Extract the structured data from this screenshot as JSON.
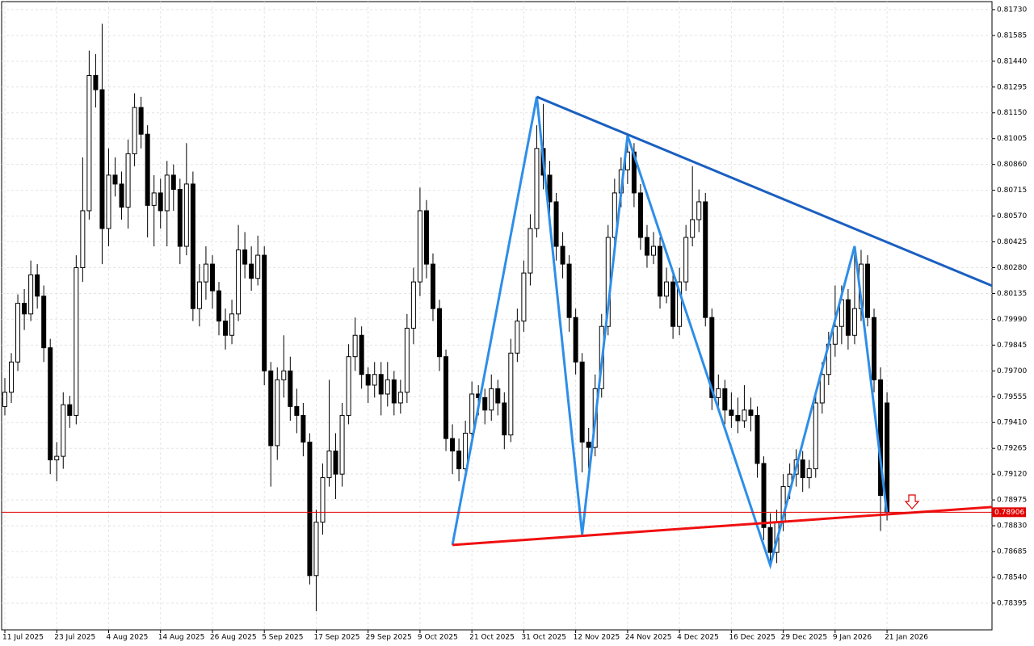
{
  "chart_data": {
    "type": "candlestick",
    "ylim": [
      0.78245,
      0.81775
    ],
    "yticks": [
      {
        "value": 0.8173,
        "label": "0.81730"
      },
      {
        "value": 0.81585,
        "label": "0.81585"
      },
      {
        "value": 0.8144,
        "label": "0.81440"
      },
      {
        "value": 0.81295,
        "label": "0.81295"
      },
      {
        "value": 0.8115,
        "label": "0.81150"
      },
      {
        "value": 0.81005,
        "label": "0.81005"
      },
      {
        "value": 0.8086,
        "label": "0.80860"
      },
      {
        "value": 0.80715,
        "label": "0.80715"
      },
      {
        "value": 0.8057,
        "label": "0.80570"
      },
      {
        "value": 0.80425,
        "label": "0.80425"
      },
      {
        "value": 0.8028,
        "label": "0.80280"
      },
      {
        "value": 0.80135,
        "label": "0.80135"
      },
      {
        "value": 0.7999,
        "label": "0.79990"
      },
      {
        "value": 0.79845,
        "label": "0.79845"
      },
      {
        "value": 0.797,
        "label": "0.79700"
      },
      {
        "value": 0.79555,
        "label": "0.79555"
      },
      {
        "value": 0.7941,
        "label": "0.79410"
      },
      {
        "value": 0.79265,
        "label": "0.79265"
      },
      {
        "value": 0.7912,
        "label": "0.79120"
      },
      {
        "value": 0.78975,
        "label": "0.78975"
      },
      {
        "value": 0.7883,
        "label": "0.78830"
      },
      {
        "value": 0.78685,
        "label": "0.78685"
      },
      {
        "value": 0.7854,
        "label": "0.78540"
      },
      {
        "value": 0.78395,
        "label": "0.78395"
      }
    ],
    "grid": true,
    "categories": [
      "11 Jul 2025",
      null,
      null,
      null,
      null,
      null,
      null,
      null,
      "23 Jul 2025",
      null,
      null,
      null,
      null,
      null,
      null,
      null,
      "4 Aug 2025",
      null,
      null,
      null,
      null,
      null,
      null,
      null,
      "14 Aug 2025",
      null,
      null,
      null,
      null,
      null,
      null,
      null,
      "26 Aug 2025",
      null,
      null,
      null,
      null,
      null,
      null,
      null,
      "5 Sep 2025",
      null,
      null,
      null,
      null,
      null,
      null,
      null,
      "17 Sep 2025",
      null,
      null,
      null,
      null,
      null,
      null,
      null,
      "29 Sep 2025",
      null,
      null,
      null,
      null,
      null,
      null,
      null,
      "9 Oct 2025",
      null,
      null,
      null,
      null,
      null,
      null,
      null,
      "21 Oct 2025",
      null,
      null,
      null,
      null,
      null,
      null,
      null,
      "31 Oct 2025",
      null,
      null,
      null,
      null,
      null,
      null,
      null,
      "12 Nov 2025",
      null,
      null,
      null,
      null,
      null,
      null,
      null,
      "24 Nov 2025",
      null,
      null,
      null,
      null,
      null,
      null,
      null,
      "4 Dec 2025",
      null,
      null,
      null,
      null,
      null,
      null,
      null,
      "16 Dec 2025",
      null,
      null,
      null,
      null,
      null,
      null,
      null,
      "29 Dec 2025",
      null,
      null,
      null,
      null,
      null,
      null,
      null,
      "9 Jan 2026",
      null,
      null,
      null,
      null,
      null,
      null,
      null,
      "21 Jan 2026"
    ],
    "candles": [
      [
        0.795,
        0.7966,
        0.7945,
        0.7958
      ],
      [
        0.7958,
        0.798,
        0.7952,
        0.7975
      ],
      [
        0.7975,
        0.8013,
        0.797,
        0.8008
      ],
      [
        0.8008,
        0.8016,
        0.7993,
        0.8002
      ],
      [
        0.8002,
        0.8032,
        0.7998,
        0.8024
      ],
      [
        0.8024,
        0.803,
        0.8005,
        0.8012
      ],
      [
        0.8012,
        0.8018,
        0.7975,
        0.7983
      ],
      [
        0.7983,
        0.7988,
        0.7912,
        0.792
      ],
      [
        0.792,
        0.793,
        0.7908,
        0.7922
      ],
      [
        0.7922,
        0.7958,
        0.7915,
        0.7951
      ],
      [
        0.7951,
        0.7956,
        0.7938,
        0.7945
      ],
      [
        0.7945,
        0.8035,
        0.794,
        0.8028
      ],
      [
        0.8028,
        0.809,
        0.802,
        0.806
      ],
      [
        0.806,
        0.815,
        0.8055,
        0.8136
      ],
      [
        0.8136,
        0.8148,
        0.8118,
        0.8128
      ],
      [
        0.8128,
        0.8165,
        0.803,
        0.805
      ],
      [
        0.805,
        0.8095,
        0.804,
        0.808
      ],
      [
        0.808,
        0.809,
        0.8068,
        0.8075
      ],
      [
        0.8075,
        0.8082,
        0.8055,
        0.8062
      ],
      [
        0.8062,
        0.81,
        0.805,
        0.8092
      ],
      [
        0.8092,
        0.8126,
        0.8085,
        0.8118
      ],
      [
        0.8118,
        0.8124,
        0.8095,
        0.8103
      ],
      [
        0.8103,
        0.8108,
        0.8045,
        0.8063
      ],
      [
        0.8063,
        0.808,
        0.804,
        0.807
      ],
      [
        0.807,
        0.8078,
        0.805,
        0.806
      ],
      [
        0.806,
        0.8088,
        0.804,
        0.808
      ],
      [
        0.808,
        0.8086,
        0.806,
        0.8072
      ],
      [
        0.8072,
        0.8078,
        0.803,
        0.804
      ],
      [
        0.804,
        0.8098,
        0.8035,
        0.8075
      ],
      [
        0.8075,
        0.8082,
        0.7998,
        0.8005
      ],
      [
        0.8005,
        0.803,
        0.7995,
        0.802
      ],
      [
        0.802,
        0.804,
        0.801,
        0.803
      ],
      [
        0.803,
        0.8035,
        0.8005,
        0.8015
      ],
      [
        0.8015,
        0.802,
        0.799,
        0.7998
      ],
      [
        0.7998,
        0.8005,
        0.7982,
        0.799
      ],
      [
        0.799,
        0.801,
        0.7985,
        0.8002
      ],
      [
        0.8002,
        0.8052,
        0.7998,
        0.8038
      ],
      [
        0.8038,
        0.8048,
        0.8022,
        0.803
      ],
      [
        0.803,
        0.804,
        0.8015,
        0.8022
      ],
      [
        0.8022,
        0.8046,
        0.8018,
        0.8035
      ],
      [
        0.8035,
        0.804,
        0.7962,
        0.797
      ],
      [
        0.797,
        0.7975,
        0.7905,
        0.7928
      ],
      [
        0.7928,
        0.7972,
        0.792,
        0.7965
      ],
      [
        0.7965,
        0.799,
        0.7955,
        0.797
      ],
      [
        0.797,
        0.7978,
        0.7942,
        0.795
      ],
      [
        0.795,
        0.796,
        0.7935,
        0.7945
      ],
      [
        0.7945,
        0.7952,
        0.7922,
        0.793
      ],
      [
        0.793,
        0.7935,
        0.785,
        0.7855
      ],
      [
        0.7855,
        0.7892,
        0.7835,
        0.7885
      ],
      [
        0.7885,
        0.7918,
        0.7878,
        0.791
      ],
      [
        0.791,
        0.7965,
        0.7905,
        0.7925
      ],
      [
        0.7925,
        0.7935,
        0.7898,
        0.7912
      ],
      [
        0.7912,
        0.7952,
        0.7905,
        0.7945
      ],
      [
        0.7945,
        0.7985,
        0.794,
        0.7978
      ],
      [
        0.7978,
        0.8,
        0.797,
        0.799
      ],
      [
        0.799,
        0.7995,
        0.796,
        0.7968
      ],
      [
        0.7968,
        0.7972,
        0.7952,
        0.7962
      ],
      [
        0.7962,
        0.7975,
        0.7955,
        0.7968
      ],
      [
        0.7968,
        0.7975,
        0.7945,
        0.7957
      ],
      [
        0.7957,
        0.7975,
        0.795,
        0.7965
      ],
      [
        0.7965,
        0.797,
        0.7945,
        0.7952
      ],
      [
        0.7952,
        0.7965,
        0.7946,
        0.7958
      ],
      [
        0.7958,
        0.8002,
        0.7952,
        0.7994
      ],
      [
        0.7994,
        0.8028,
        0.7985,
        0.802
      ],
      [
        0.802,
        0.8073,
        0.8012,
        0.806
      ],
      [
        0.806,
        0.8066,
        0.8022,
        0.803
      ],
      [
        0.803,
        0.8036,
        0.7998,
        0.8005
      ],
      [
        0.8005,
        0.801,
        0.797,
        0.7978
      ],
      [
        0.7978,
        0.7982,
        0.7925,
        0.7932
      ],
      [
        0.7932,
        0.794,
        0.7912,
        0.7925
      ],
      [
        0.7925,
        0.7932,
        0.7908,
        0.7915
      ],
      [
        0.7915,
        0.7942,
        0.791,
        0.7935
      ],
      [
        0.7935,
        0.7964,
        0.7928,
        0.7957
      ],
      [
        0.7957,
        0.7962,
        0.7945,
        0.7955
      ],
      [
        0.7955,
        0.796,
        0.794,
        0.7948
      ],
      [
        0.7948,
        0.7968,
        0.7942,
        0.796
      ],
      [
        0.796,
        0.7965,
        0.7945,
        0.7952
      ],
      [
        0.7952,
        0.7958,
        0.7926,
        0.7934
      ],
      [
        0.7934,
        0.7988,
        0.793,
        0.798
      ],
      [
        0.798,
        0.8005,
        0.7975,
        0.7998
      ],
      [
        0.7998,
        0.8032,
        0.7992,
        0.8025
      ],
      [
        0.8025,
        0.8058,
        0.8018,
        0.805
      ],
      [
        0.805,
        0.8108,
        0.8045,
        0.8095
      ],
      [
        0.8095,
        0.812,
        0.8072,
        0.808
      ],
      [
        0.808,
        0.8088,
        0.8058,
        0.8065
      ],
      [
        0.8065,
        0.807,
        0.8032,
        0.804
      ],
      [
        0.804,
        0.8048,
        0.8022,
        0.803
      ],
      [
        0.803,
        0.8035,
        0.7992,
        0.8
      ],
      [
        0.8,
        0.8005,
        0.7968,
        0.7975
      ],
      [
        0.7975,
        0.798,
        0.7913,
        0.793
      ],
      [
        0.793,
        0.7938,
        0.7915,
        0.7927
      ],
      [
        0.7927,
        0.7968,
        0.7922,
        0.796
      ],
      [
        0.796,
        0.8002,
        0.7955,
        0.7995
      ],
      [
        0.7995,
        0.8052,
        0.799,
        0.8045
      ],
      [
        0.8045,
        0.8078,
        0.804,
        0.807
      ],
      [
        0.807,
        0.809,
        0.8062,
        0.8083
      ],
      [
        0.8083,
        0.81,
        0.8075,
        0.8093
      ],
      [
        0.8093,
        0.8098,
        0.8062,
        0.807
      ],
      [
        0.807,
        0.8075,
        0.8038,
        0.8045
      ],
      [
        0.8045,
        0.8052,
        0.8028,
        0.8035
      ],
      [
        0.8035,
        0.8048,
        0.803,
        0.804
      ],
      [
        0.804,
        0.8045,
        0.8005,
        0.8012
      ],
      [
        0.8012,
        0.8028,
        0.8008,
        0.802
      ],
      [
        0.802,
        0.8025,
        0.7988,
        0.7995
      ],
      [
        0.7995,
        0.8028,
        0.799,
        0.802
      ],
      [
        0.802,
        0.8052,
        0.8015,
        0.8045
      ],
      [
        0.8045,
        0.8085,
        0.804,
        0.8055
      ],
      [
        0.8055,
        0.8072,
        0.8048,
        0.8065
      ],
      [
        0.8065,
        0.807,
        0.7995,
        0.8
      ],
      [
        0.8,
        0.8005,
        0.7948,
        0.7955
      ],
      [
        0.7955,
        0.7968,
        0.795,
        0.796
      ],
      [
        0.796,
        0.7965,
        0.794,
        0.7948
      ],
      [
        0.7948,
        0.7958,
        0.7938,
        0.7945
      ],
      [
        0.7945,
        0.7955,
        0.7935,
        0.7942
      ],
      [
        0.7942,
        0.7962,
        0.7938,
        0.7948
      ],
      [
        0.7948,
        0.7955,
        0.7936,
        0.7945
      ],
      [
        0.7945,
        0.795,
        0.791,
        0.7918
      ],
      [
        0.7918,
        0.7922,
        0.7875,
        0.7882
      ],
      [
        0.7882,
        0.789,
        0.786,
        0.7868
      ],
      [
        0.7868,
        0.7892,
        0.7862,
        0.7885
      ],
      [
        0.7885,
        0.7912,
        0.788,
        0.7905
      ],
      [
        0.7905,
        0.7918,
        0.7898,
        0.7912
      ],
      [
        0.7912,
        0.7926,
        0.7905,
        0.792
      ],
      [
        0.792,
        0.7925,
        0.7902,
        0.791
      ],
      [
        0.791,
        0.792,
        0.7904,
        0.7915
      ],
      [
        0.7915,
        0.7958,
        0.791,
        0.7952
      ],
      [
        0.7952,
        0.7975,
        0.7946,
        0.7968
      ],
      [
        0.7968,
        0.7992,
        0.7962,
        0.7985
      ],
      [
        0.7985,
        0.8018,
        0.7978,
        0.7995
      ],
      [
        0.7995,
        0.8018,
        0.7985,
        0.801
      ],
      [
        0.801,
        0.8016,
        0.7982,
        0.799
      ],
      [
        0.799,
        0.8038,
        0.7985,
        0.8005
      ],
      [
        0.8005,
        0.8038,
        0.7998,
        0.803
      ],
      [
        0.803,
        0.8035,
        0.7995,
        0.8
      ],
      [
        0.8,
        0.8005,
        0.7958,
        0.7965
      ],
      [
        0.7965,
        0.7972,
        0.788,
        0.79
      ],
      [
        0.7952,
        0.7958,
        0.7886,
        0.78906
      ]
    ],
    "price_line": {
      "value": 0.78906,
      "label": "0.78906",
      "color": "#e00000"
    },
    "trendlines": [
      {
        "color": "#2e8ee8",
        "points": [
          [
            69,
            0.78722
          ],
          [
            82,
            0.8124
          ],
          [
            89,
            0.78781
          ],
          [
            96,
            0.81022
          ],
          [
            118,
            0.78608
          ],
          [
            131,
            0.80401
          ],
          [
            136,
            0.78894
          ]
        ]
      },
      {
        "color": "#1a5fc0",
        "points": [
          [
            82,
            0.8124
          ],
          [
            154,
            0.80151
          ]
        ]
      },
      {
        "color": "#f01010",
        "points": [
          [
            69,
            0.78722
          ],
          [
            154,
            0.7894
          ]
        ]
      }
    ]
  }
}
